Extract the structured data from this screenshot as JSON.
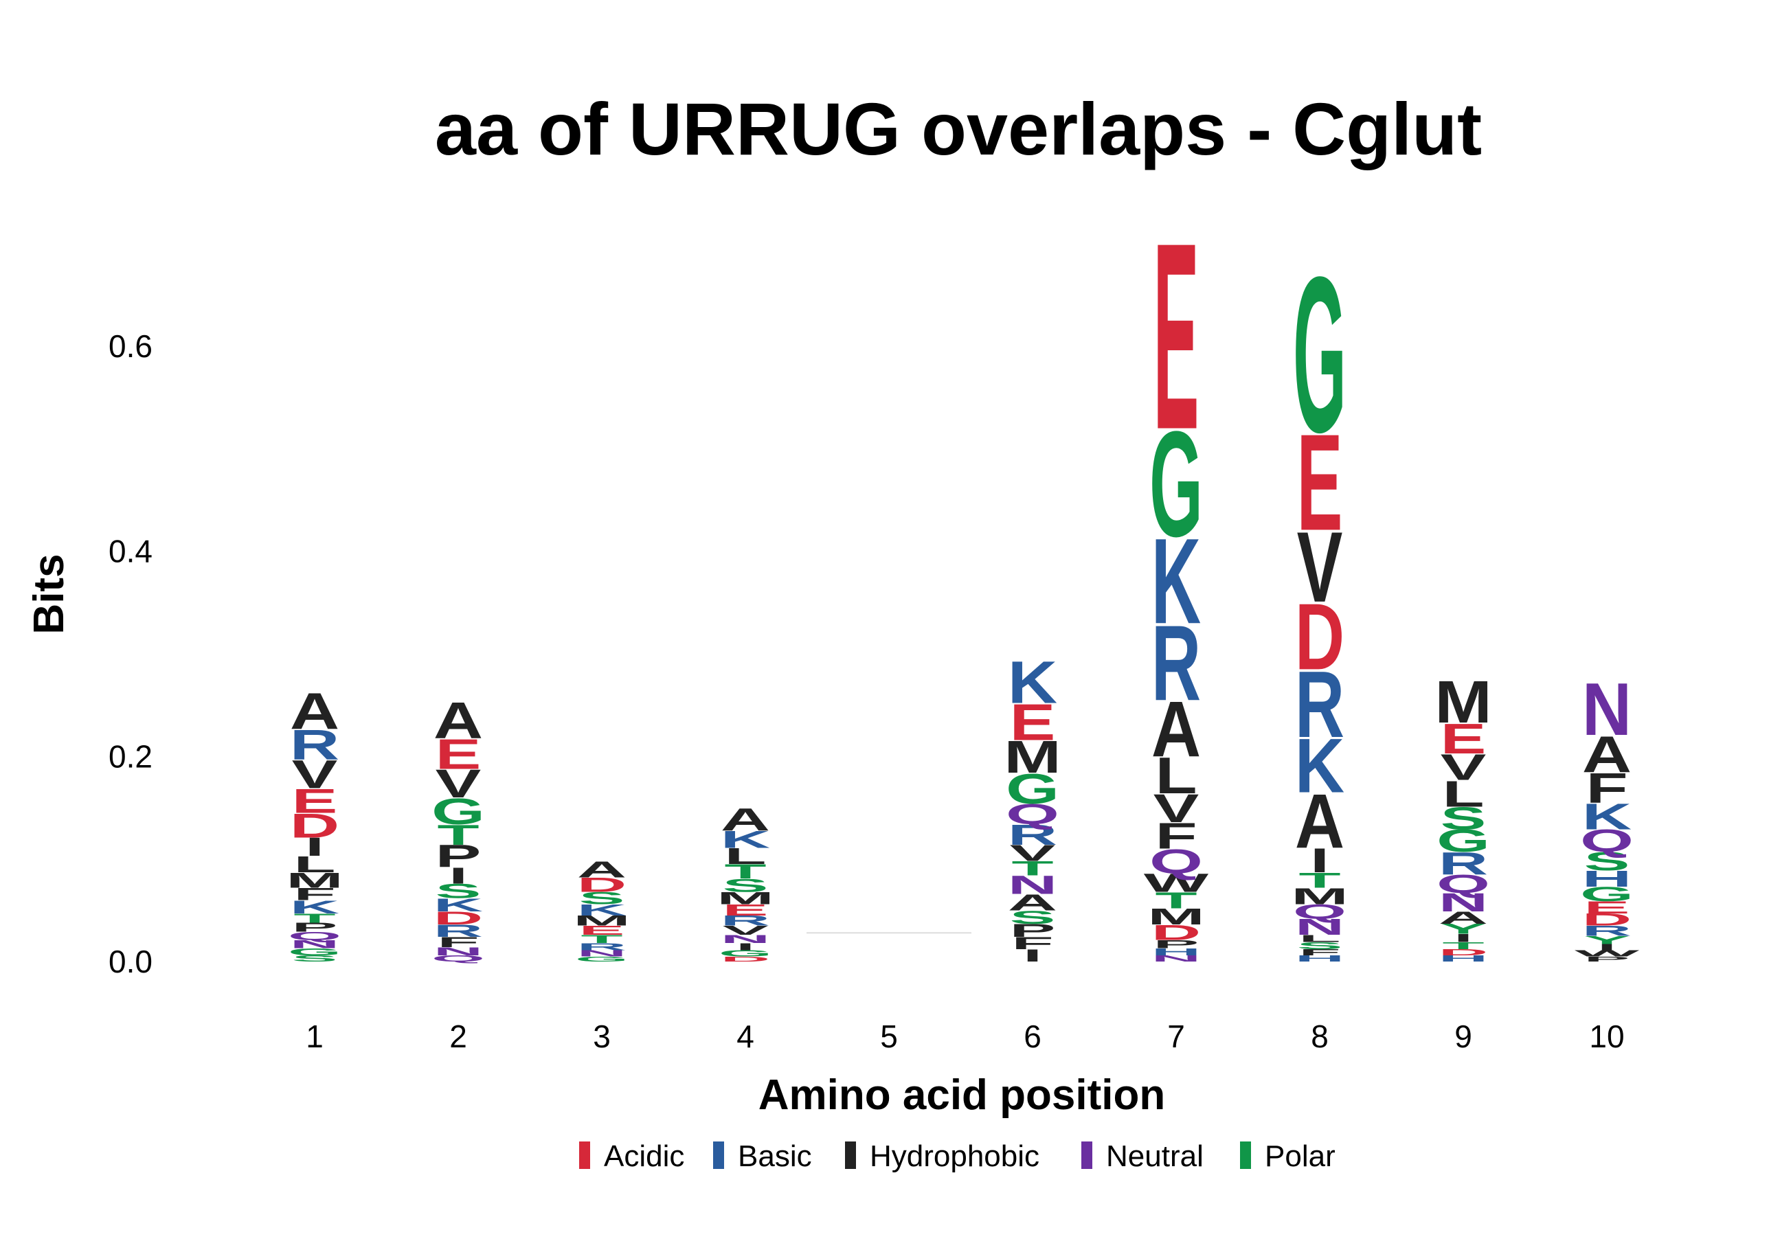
{
  "chart_data": {
    "type": "sequence-logo",
    "title": "aa of URRUG overlaps - Cglut",
    "xlabel": "Amino acid position",
    "ylabel": "Bits",
    "ylim": [
      0,
      0.74
    ],
    "yticks": [
      "0.0",
      "0.2",
      "0.4",
      "0.6"
    ],
    "ytick_values": [
      0,
      0.2,
      0.4,
      0.6
    ],
    "categories": [
      "1",
      "2",
      "3",
      "4",
      "5",
      "6",
      "7",
      "8",
      "9",
      "10"
    ],
    "grid": false,
    "legend_position": "bottom",
    "color_scheme": [
      {
        "name": "Acidic",
        "color": "#d62839"
      },
      {
        "name": "Basic",
        "color": "#2a5c9e"
      },
      {
        "name": "Hydrophobic",
        "color": "#222222"
      },
      {
        "name": "Neutral",
        "color": "#6a2fa0"
      },
      {
        "name": "Polar",
        "color": "#109648"
      }
    ],
    "residue_groups": {
      "A": "Hydrophobic",
      "V": "Hydrophobic",
      "L": "Hydrophobic",
      "I": "Hydrophobic",
      "M": "Hydrophobic",
      "F": "Hydrophobic",
      "W": "Hydrophobic",
      "P": "Hydrophobic",
      "R": "Basic",
      "K": "Basic",
      "H": "Basic",
      "D": "Acidic",
      "E": "Acidic",
      "G": "Polar",
      "S": "Polar",
      "T": "Polar",
      "Y": "Polar",
      "C": "Polar",
      "N": "Neutral",
      "Q": "Neutral"
    },
    "positions": [
      {
        "position": "1",
        "letters": [
          {
            "aa": "S",
            "bits": 0.006
          },
          {
            "aa": "G",
            "bits": 0.007
          },
          {
            "aa": "N",
            "bits": 0.008
          },
          {
            "aa": "Q",
            "bits": 0.008
          },
          {
            "aa": "P",
            "bits": 0.009
          },
          {
            "aa": "T",
            "bits": 0.009
          },
          {
            "aa": "K",
            "bits": 0.013
          },
          {
            "aa": "F",
            "bits": 0.012
          },
          {
            "aa": "M",
            "bits": 0.015
          },
          {
            "aa": "L",
            "bits": 0.016
          },
          {
            "aa": "I",
            "bits": 0.018
          },
          {
            "aa": "D",
            "bits": 0.024
          },
          {
            "aa": "E",
            "bits": 0.024
          },
          {
            "aa": "V",
            "bits": 0.028
          },
          {
            "aa": "R",
            "bits": 0.03
          },
          {
            "aa": "A",
            "bits": 0.036
          }
        ]
      },
      {
        "position": "2",
        "letters": [
          {
            "aa": "Q",
            "bits": 0.006
          },
          {
            "aa": "N",
            "bits": 0.008
          },
          {
            "aa": "F",
            "bits": 0.01
          },
          {
            "aa": "R",
            "bits": 0.012
          },
          {
            "aa": "D",
            "bits": 0.013
          },
          {
            "aa": "K",
            "bits": 0.013
          },
          {
            "aa": "S",
            "bits": 0.014
          },
          {
            "aa": "I",
            "bits": 0.016
          },
          {
            "aa": "P",
            "bits": 0.022
          },
          {
            "aa": "T",
            "bits": 0.02
          },
          {
            "aa": "G",
            "bits": 0.026
          },
          {
            "aa": "V",
            "bits": 0.028
          },
          {
            "aa": "E",
            "bits": 0.03
          },
          {
            "aa": "A",
            "bits": 0.036
          }
        ]
      },
      {
        "position": "3",
        "letters": [
          {
            "aa": "G",
            "bits": 0.005
          },
          {
            "aa": "N",
            "bits": 0.006
          },
          {
            "aa": "R",
            "bits": 0.007
          },
          {
            "aa": "T",
            "bits": 0.008
          },
          {
            "aa": "E",
            "bits": 0.009
          },
          {
            "aa": "M",
            "bits": 0.01
          },
          {
            "aa": "K",
            "bits": 0.011
          },
          {
            "aa": "S",
            "bits": 0.012
          },
          {
            "aa": "D",
            "bits": 0.014
          },
          {
            "aa": "A",
            "bits": 0.016
          }
        ]
      },
      {
        "position": "4",
        "letters": [
          {
            "aa": "D",
            "bits": 0.005
          },
          {
            "aa": "G",
            "bits": 0.006
          },
          {
            "aa": "I",
            "bits": 0.007
          },
          {
            "aa": "N",
            "bits": 0.008
          },
          {
            "aa": "V",
            "bits": 0.009
          },
          {
            "aa": "R",
            "bits": 0.01
          },
          {
            "aa": "E",
            "bits": 0.011
          },
          {
            "aa": "M",
            "bits": 0.012
          },
          {
            "aa": "S",
            "bits": 0.013
          },
          {
            "aa": "T",
            "bits": 0.014
          },
          {
            "aa": "L",
            "bits": 0.016
          },
          {
            "aa": "K",
            "bits": 0.017
          },
          {
            "aa": "A",
            "bits": 0.022
          }
        ]
      },
      {
        "position": "5",
        "letters": []
      },
      {
        "position": "6",
        "letters": [
          {
            "aa": "I",
            "bits": 0.012
          },
          {
            "aa": "F",
            "bits": 0.012
          },
          {
            "aa": "P",
            "bits": 0.013
          },
          {
            "aa": "S",
            "bits": 0.013
          },
          {
            "aa": "A",
            "bits": 0.016
          },
          {
            "aa": "N",
            "bits": 0.018
          },
          {
            "aa": "T",
            "bits": 0.014
          },
          {
            "aa": "V",
            "bits": 0.016
          },
          {
            "aa": "R",
            "bits": 0.02
          },
          {
            "aa": "Q",
            "bits": 0.02
          },
          {
            "aa": "G",
            "bits": 0.03
          },
          {
            "aa": "M",
            "bits": 0.032
          },
          {
            "aa": "E",
            "bits": 0.036
          },
          {
            "aa": "K",
            "bits": 0.042
          }
        ]
      },
      {
        "position": "7",
        "letters": [
          {
            "aa": "N",
            "bits": 0.006
          },
          {
            "aa": "H",
            "bits": 0.007
          },
          {
            "aa": "P",
            "bits": 0.008
          },
          {
            "aa": "D",
            "bits": 0.015
          },
          {
            "aa": "M",
            "bits": 0.016
          },
          {
            "aa": "T",
            "bits": 0.016
          },
          {
            "aa": "W",
            "bits": 0.018
          },
          {
            "aa": "Q",
            "bits": 0.024
          },
          {
            "aa": "F",
            "bits": 0.026
          },
          {
            "aa": "V",
            "bits": 0.028
          },
          {
            "aa": "L",
            "bits": 0.036
          },
          {
            "aa": "A",
            "bits": 0.055
          },
          {
            "aa": "R",
            "bits": 0.075
          },
          {
            "aa": "K",
            "bits": 0.085
          },
          {
            "aa": "G",
            "bits": 0.105
          },
          {
            "aa": "E",
            "bits": 0.186
          }
        ]
      },
      {
        "position": "8",
        "letters": [
          {
            "aa": "H",
            "bits": 0.006
          },
          {
            "aa": "F",
            "bits": 0.006
          },
          {
            "aa": "S",
            "bits": 0.007
          },
          {
            "aa": "L",
            "bits": 0.007
          },
          {
            "aa": "N",
            "bits": 0.016
          },
          {
            "aa": "Q",
            "bits": 0.014
          },
          {
            "aa": "M",
            "bits": 0.016
          },
          {
            "aa": "T",
            "bits": 0.015
          },
          {
            "aa": "I",
            "bits": 0.024
          },
          {
            "aa": "A",
            "bits": 0.054
          },
          {
            "aa": "K",
            "bits": 0.054
          },
          {
            "aa": "R",
            "bits": 0.066
          },
          {
            "aa": "D",
            "bits": 0.066
          },
          {
            "aa": "V",
            "bits": 0.07
          },
          {
            "aa": "E",
            "bits": 0.096
          },
          {
            "aa": "G",
            "bits": 0.155
          }
        ]
      },
      {
        "position": "9",
        "letters": [
          {
            "aa": "H",
            "bits": 0.006
          },
          {
            "aa": "D",
            "bits": 0.006
          },
          {
            "aa": "T",
            "bits": 0.007
          },
          {
            "aa": "I",
            "bits": 0.008
          },
          {
            "aa": "Y",
            "bits": 0.01
          },
          {
            "aa": "A",
            "bits": 0.012
          },
          {
            "aa": "N",
            "bits": 0.018
          },
          {
            "aa": "Q",
            "bits": 0.018
          },
          {
            "aa": "R",
            "bits": 0.022
          },
          {
            "aa": "G",
            "bits": 0.022
          },
          {
            "aa": "S",
            "bits": 0.022
          },
          {
            "aa": "L",
            "bits": 0.026
          },
          {
            "aa": "V",
            "bits": 0.026
          },
          {
            "aa": "E",
            "bits": 0.03
          },
          {
            "aa": "M",
            "bits": 0.042
          }
        ]
      },
      {
        "position": "10",
        "letters": [
          {
            "aa": "P",
            "bits": 0.005
          },
          {
            "aa": "W",
            "bits": 0.006
          },
          {
            "aa": "I",
            "bits": 0.006
          },
          {
            "aa": "Y",
            "bits": 0.008
          },
          {
            "aa": "R",
            "bits": 0.01
          },
          {
            "aa": "D",
            "bits": 0.012
          },
          {
            "aa": "E",
            "bits": 0.012
          },
          {
            "aa": "G",
            "bits": 0.014
          },
          {
            "aa": "H",
            "bits": 0.016
          },
          {
            "aa": "S",
            "bits": 0.018
          },
          {
            "aa": "Q",
            "bits": 0.022
          },
          {
            "aa": "K",
            "bits": 0.026
          },
          {
            "aa": "F",
            "bits": 0.03
          },
          {
            "aa": "A",
            "bits": 0.036
          },
          {
            "aa": "N",
            "bits": 0.052
          }
        ]
      }
    ]
  }
}
